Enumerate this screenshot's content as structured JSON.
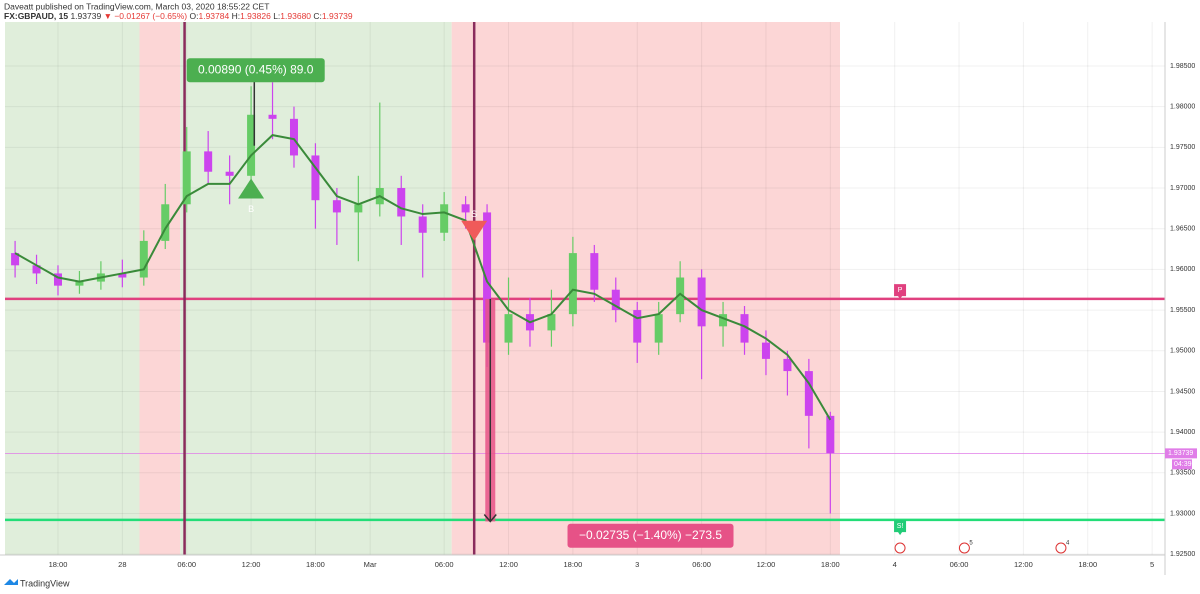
{
  "header": {
    "publisher": "Daveatt published on TradingView.com, March 03, 2020 18:55:22 CET",
    "symbol": "FX:GBPAUD, 15",
    "last": "1.93739",
    "change": "▼ −0.01267 (−0.65%)",
    "ohlc": [
      {
        "label": "O:",
        "value": "1.93784"
      },
      {
        "label": "H:",
        "value": "1.93826"
      },
      {
        "label": "L:",
        "value": "1.93680"
      },
      {
        "label": "C:",
        "value": "1.93739"
      }
    ]
  },
  "footer": {
    "brand": "TradingView"
  },
  "chart_data": {
    "type": "candlestick",
    "up_color": "#66cc66",
    "down_color": "#cc44ee",
    "x": [
      14,
      16,
      18,
      20,
      22,
      24,
      26,
      28,
      30,
      32,
      34,
      36,
      38,
      40,
      42,
      44,
      46,
      48,
      50,
      52,
      54,
      56,
      58,
      60,
      62,
      64,
      66,
      68,
      70,
      72,
      74,
      76,
      78,
      80,
      82,
      84,
      86,
      88,
      90
    ],
    "open": [
      1.962,
      1.9605,
      1.9595,
      1.958,
      1.9585,
      1.9595,
      1.959,
      1.9635,
      1.968,
      1.9745,
      1.972,
      1.9715,
      1.979,
      1.9785,
      1.974,
      1.9685,
      1.967,
      1.968,
      1.97,
      1.9665,
      1.9645,
      1.968,
      1.967,
      1.951,
      1.9545,
      1.9525,
      1.9545,
      1.962,
      1.9575,
      1.955,
      1.951,
      1.9545,
      1.959,
      1.953,
      1.9545,
      1.951,
      1.949,
      1.9475,
      1.942
    ],
    "high": [
      1.9635,
      1.9618,
      1.9605,
      1.9598,
      1.961,
      1.9612,
      1.9648,
      1.9705,
      1.9775,
      1.977,
      1.974,
      1.9825,
      1.983,
      1.98,
      1.9755,
      1.97,
      1.9715,
      1.9805,
      1.9715,
      1.968,
      1.9695,
      1.969,
      1.968,
      1.959,
      1.9565,
      1.9575,
      1.964,
      1.963,
      1.959,
      1.956,
      1.956,
      1.961,
      1.96,
      1.956,
      1.9555,
      1.9525,
      1.95,
      1.949,
      1.9425
    ],
    "low": [
      1.959,
      1.9582,
      1.9568,
      1.957,
      1.9575,
      1.9578,
      1.958,
      1.9625,
      1.967,
      1.9705,
      1.968,
      1.9705,
      1.976,
      1.9725,
      1.965,
      1.963,
      1.961,
      1.9665,
      1.963,
      1.959,
      1.9635,
      1.965,
      1.948,
      1.9495,
      1.9505,
      1.9505,
      1.953,
      1.956,
      1.9535,
      1.9485,
      1.9495,
      1.9535,
      1.9465,
      1.9505,
      1.9495,
      1.947,
      1.9445,
      1.938,
      1.93
    ],
    "close": [
      1.9605,
      1.9595,
      1.958,
      1.9585,
      1.9595,
      1.959,
      1.9635,
      1.968,
      1.9745,
      1.972,
      1.9715,
      1.979,
      1.9785,
      1.974,
      1.9685,
      1.967,
      1.968,
      1.97,
      1.9665,
      1.9645,
      1.968,
      1.967,
      1.951,
      1.9545,
      1.9525,
      1.9545,
      1.962,
      1.9575,
      1.955,
      1.951,
      1.9545,
      1.959,
      1.953,
      1.9545,
      1.951,
      1.949,
      1.9475,
      1.942,
      1.9374
    ],
    "ma": {
      "color": "#3a8a3a",
      "values": [
        1.962,
        1.9605,
        1.959,
        1.9585,
        1.959,
        1.9595,
        1.96,
        1.965,
        1.969,
        1.9705,
        1.9705,
        1.974,
        1.9765,
        1.976,
        1.9725,
        1.969,
        1.968,
        1.969,
        1.9675,
        1.9668,
        1.967,
        1.966,
        1.9585,
        1.955,
        1.9535,
        1.9545,
        1.9575,
        1.957,
        1.9555,
        1.954,
        1.9545,
        1.957,
        1.955,
        1.954,
        1.953,
        1.9515,
        1.9495,
        1.946,
        1.9415
      ]
    },
    "regions": [
      {
        "from": 13.06,
        "to": 25.6,
        "color": "#e0eedb"
      },
      {
        "from": 25.6,
        "to": 29.4,
        "color": "#fcd6d6"
      },
      {
        "from": 29.4,
        "to": 54.7,
        "color": "#e0eedb"
      },
      {
        "from": 54.7,
        "to": 90.9,
        "color": "#fcd6d6"
      }
    ],
    "vlines": [
      29.8,
      56.8
    ],
    "hlines": [
      {
        "value": 1.95637,
        "color": "#e0407f"
      },
      {
        "value": 1.92922,
        "color": "#22dd77"
      }
    ],
    "last_price": 1.93739,
    "last_label": "1.93739",
    "countdown": "04:39",
    "measures": [
      {
        "x": 36.3,
        "from": 1.9752,
        "to": 1.9841,
        "label": "0.00890 (0.45%) 89.0",
        "color": "#4caf50",
        "box_x": 30,
        "box_price": 1.98447
      },
      {
        "x": 58.3,
        "from": 1.95637,
        "to": 1.92902,
        "label": "−0.02735 (−1.40%) −273.5",
        "color": "#e65287",
        "box_x": 65.5,
        "box_price": 1.92727
      }
    ],
    "signals": [
      {
        "x": 36,
        "price": 1.9697,
        "label": "B",
        "dir": "up",
        "color": "#4caf50"
      },
      {
        "x": 56.8,
        "price": 1.965,
        "label": "S",
        "dir": "down",
        "color": "#f05a5a"
      },
      {
        "x": 96.5,
        "price": 1.9572,
        "label": "P",
        "dir": "flag",
        "color": "#e0407f"
      },
      {
        "x": 96.5,
        "price": 1.9282,
        "label": "S!",
        "dir": "flag",
        "color": "#22cc77"
      }
    ],
    "events": [
      {
        "x": 96.5,
        "label": ""
      },
      {
        "x": 102.5,
        "label": "5"
      },
      {
        "x": 111.5,
        "label": "4"
      }
    ],
    "xlim": [
      13.06,
      121.2
    ],
    "ylim": [
      1.9249,
      1.9904
    ],
    "xticks": [
      {
        "value": 18,
        "label": "18:00"
      },
      {
        "value": 24,
        "label": "28"
      },
      {
        "value": 30,
        "label": "06:00"
      },
      {
        "value": 36,
        "label": "12:00"
      },
      {
        "value": 42,
        "label": "18:00"
      },
      {
        "value": 47.1,
        "label": "Mar"
      },
      {
        "value": 54,
        "label": "06:00"
      },
      {
        "value": 60,
        "label": "12:00"
      },
      {
        "value": 66,
        "label": "18:00"
      },
      {
        "value": 72,
        "label": "3"
      },
      {
        "value": 78,
        "label": "06:00"
      },
      {
        "value": 84,
        "label": "12:00"
      },
      {
        "value": 90,
        "label": "18:00"
      },
      {
        "value": 96,
        "label": "4"
      },
      {
        "value": 102,
        "label": "06:00"
      },
      {
        "value": 108,
        "label": "12:00"
      },
      {
        "value": 114,
        "label": "18:00"
      },
      {
        "value": 120,
        "label": "5"
      }
    ],
    "yticks": [
      {
        "value": 1.925,
        "label": "1.92500"
      },
      {
        "value": 1.93,
        "label": "1.93000"
      },
      {
        "value": 1.935,
        "label": "1.93500"
      },
      {
        "value": 1.94,
        "label": "1.94000"
      },
      {
        "value": 1.945,
        "label": "1.94500"
      },
      {
        "value": 1.95,
        "label": "1.95000"
      },
      {
        "value": 1.955,
        "label": "1.95500"
      },
      {
        "value": 1.96,
        "label": "1.96000"
      },
      {
        "value": 1.965,
        "label": "1.96500"
      },
      {
        "value": 1.97,
        "label": "1.97000"
      },
      {
        "value": 1.975,
        "label": "1.97500"
      },
      {
        "value": 1.98,
        "label": "1.98000"
      },
      {
        "value": 1.985,
        "label": "1.98500"
      }
    ],
    "grid": true
  }
}
